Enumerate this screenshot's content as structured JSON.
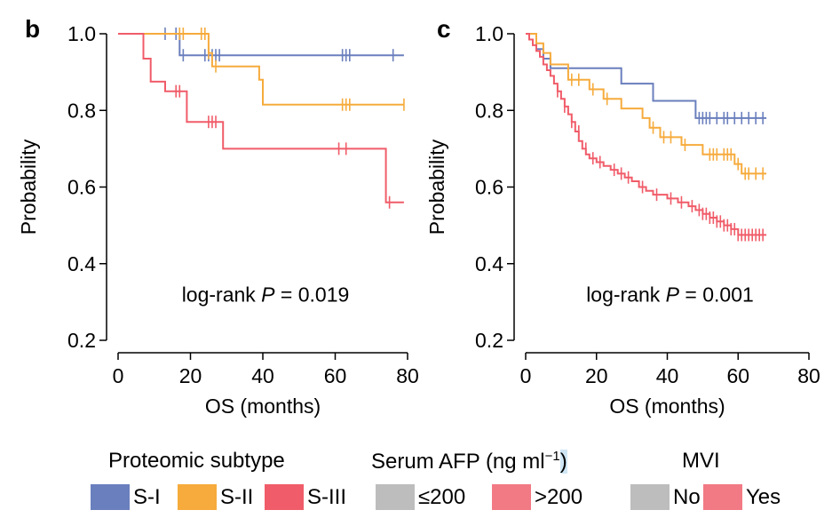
{
  "chart_data": [
    {
      "panel": "b",
      "type": "line",
      "subtype": "kaplan-meier",
      "xlabel": "OS (months)",
      "ylabel": "Probability",
      "xlim": [
        0,
        80
      ],
      "ylim": [
        0.2,
        1.0
      ],
      "xticks": [
        0,
        20,
        40,
        60,
        80
      ],
      "yticks": [
        0.2,
        0.4,
        0.6,
        0.8,
        1.0
      ],
      "ytick_labels": [
        "0.2",
        "0.4",
        "0.6",
        "0.8",
        "1.0"
      ],
      "annotation_prefix": "log-rank ",
      "annotation_p": "P",
      "annotation_suffix": " = 0.019",
      "series": [
        {
          "name": "S-I",
          "color": "#6a7fbd",
          "steps": [
            [
              0,
              1.0
            ],
            [
              17,
              1.0
            ],
            [
              17,
              0.944
            ],
            [
              79,
              0.944
            ]
          ],
          "censor": [
            [
              13,
              1.0
            ],
            [
              16,
              1.0
            ],
            [
              18,
              0.944
            ],
            [
              24,
              0.944
            ],
            [
              25,
              0.944
            ],
            [
              26,
              0.944
            ],
            [
              27,
              0.944
            ],
            [
              28,
              0.944
            ],
            [
              62,
              0.944
            ],
            [
              63,
              0.944
            ],
            [
              64,
              0.944
            ],
            [
              76,
              0.944
            ]
          ]
        },
        {
          "name": "S-II",
          "color": "#f6ab3c",
          "steps": [
            [
              0,
              1.0
            ],
            [
              25,
              1.0
            ],
            [
              25,
              0.95
            ],
            [
              26,
              0.95
            ],
            [
              26,
              0.915
            ],
            [
              39,
              0.915
            ],
            [
              39,
              0.88
            ],
            [
              40,
              0.88
            ],
            [
              40,
              0.815
            ],
            [
              79,
              0.815
            ]
          ],
          "censor": [
            [
              17,
              1.0
            ],
            [
              18,
              1.0
            ],
            [
              23,
              1.0
            ],
            [
              24,
              1.0
            ],
            [
              25,
              0.95
            ],
            [
              27,
              0.915
            ],
            [
              62,
              0.815
            ],
            [
              63,
              0.815
            ],
            [
              64,
              0.815
            ],
            [
              79,
              0.815
            ]
          ]
        },
        {
          "name": "S-III",
          "color": "#f05c69",
          "steps": [
            [
              0,
              1.0
            ],
            [
              7,
              1.0
            ],
            [
              7,
              0.935
            ],
            [
              9,
              0.935
            ],
            [
              9,
              0.875
            ],
            [
              13,
              0.875
            ],
            [
              13,
              0.85
            ],
            [
              19,
              0.85
            ],
            [
              19,
              0.77
            ],
            [
              29,
              0.77
            ],
            [
              29,
              0.7
            ],
            [
              74,
              0.7
            ],
            [
              74,
              0.56
            ],
            [
              79,
              0.56
            ]
          ],
          "censor": [
            [
              16,
              0.85
            ],
            [
              17,
              0.85
            ],
            [
              25,
              0.77
            ],
            [
              26,
              0.77
            ],
            [
              27,
              0.77
            ],
            [
              61,
              0.7
            ],
            [
              63,
              0.7
            ],
            [
              75,
              0.56
            ]
          ]
        }
      ]
    },
    {
      "panel": "c",
      "type": "line",
      "subtype": "kaplan-meier",
      "xlabel": "OS (months)",
      "ylabel": "Probability",
      "xlim": [
        0,
        80
      ],
      "ylim": [
        0.2,
        1.0
      ],
      "xticks": [
        0,
        20,
        40,
        60,
        80
      ],
      "yticks": [
        0.2,
        0.4,
        0.6,
        0.8,
        1.0
      ],
      "ytick_labels": [
        "0.2",
        "0.4",
        "0.6",
        "0.8",
        "1.0"
      ],
      "annotation_prefix": "log-rank ",
      "annotation_p": "P",
      "annotation_suffix": " = 0.001",
      "series": [
        {
          "name": "≤200",
          "color": "#6a7fbd",
          "steps": [
            [
              0,
              1.0
            ],
            [
              3,
              1.0
            ],
            [
              3,
              0.96
            ],
            [
              5,
              0.96
            ],
            [
              5,
              0.935
            ],
            [
              7,
              0.935
            ],
            [
              7,
              0.91
            ],
            [
              27,
              0.91
            ],
            [
              27,
              0.87
            ],
            [
              36,
              0.87
            ],
            [
              36,
              0.825
            ],
            [
              48,
              0.825
            ],
            [
              48,
              0.78
            ],
            [
              68,
              0.78
            ]
          ],
          "censor": [
            [
              49,
              0.78
            ],
            [
              50,
              0.78
            ],
            [
              51,
              0.78
            ],
            [
              52,
              0.78
            ],
            [
              54,
              0.78
            ],
            [
              56,
              0.78
            ],
            [
              57,
              0.78
            ],
            [
              59,
              0.78
            ],
            [
              61,
              0.78
            ],
            [
              63,
              0.78
            ],
            [
              65,
              0.78
            ],
            [
              67,
              0.78
            ]
          ]
        },
        {
          "name": ">200",
          "color": "#f6ab3c",
          "steps": [
            [
              0,
              1.0
            ],
            [
              3,
              1.0
            ],
            [
              3,
              0.975
            ],
            [
              5,
              0.975
            ],
            [
              5,
              0.95
            ],
            [
              7,
              0.95
            ],
            [
              7,
              0.92
            ],
            [
              12,
              0.92
            ],
            [
              12,
              0.88
            ],
            [
              18,
              0.88
            ],
            [
              18,
              0.855
            ],
            [
              22,
              0.855
            ],
            [
              22,
              0.83
            ],
            [
              27,
              0.83
            ],
            [
              27,
              0.805
            ],
            [
              33,
              0.805
            ],
            [
              33,
              0.78
            ],
            [
              35,
              0.78
            ],
            [
              35,
              0.755
            ],
            [
              38,
              0.755
            ],
            [
              38,
              0.73
            ],
            [
              44,
              0.73
            ],
            [
              44,
              0.71
            ],
            [
              50,
              0.71
            ],
            [
              50,
              0.685
            ],
            [
              59,
              0.685
            ],
            [
              59,
              0.66
            ],
            [
              61,
              0.66
            ],
            [
              61,
              0.635
            ],
            [
              68,
              0.635
            ]
          ],
          "censor": [
            [
              13,
              0.88
            ],
            [
              15,
              0.88
            ],
            [
              19,
              0.855
            ],
            [
              23,
              0.83
            ],
            [
              36,
              0.755
            ],
            [
              39,
              0.73
            ],
            [
              41,
              0.73
            ],
            [
              45,
              0.71
            ],
            [
              52,
              0.685
            ],
            [
              53,
              0.685
            ],
            [
              54,
              0.685
            ],
            [
              56,
              0.685
            ],
            [
              57,
              0.685
            ],
            [
              58,
              0.685
            ],
            [
              60,
              0.66
            ],
            [
              62,
              0.635
            ],
            [
              63,
              0.635
            ],
            [
              65,
              0.635
            ],
            [
              67,
              0.635
            ]
          ]
        },
        {
          "name": "Yes",
          "color": "#f05c69",
          "steps": [
            [
              0,
              1.0
            ],
            [
              1,
              1.0
            ],
            [
              1,
              0.985
            ],
            [
              2,
              0.985
            ],
            [
              2,
              0.97
            ],
            [
              3,
              0.97
            ],
            [
              3,
              0.955
            ],
            [
              4,
              0.955
            ],
            [
              4,
              0.94
            ],
            [
              5,
              0.94
            ],
            [
              5,
              0.92
            ],
            [
              6,
              0.92
            ],
            [
              6,
              0.905
            ],
            [
              7,
              0.905
            ],
            [
              7,
              0.89
            ],
            [
              8,
              0.89
            ],
            [
              8,
              0.87
            ],
            [
              9,
              0.87
            ],
            [
              9,
              0.85
            ],
            [
              10,
              0.85
            ],
            [
              10,
              0.83
            ],
            [
              11,
              0.83
            ],
            [
              11,
              0.81
            ],
            [
              12,
              0.81
            ],
            [
              12,
              0.79
            ],
            [
              13,
              0.79
            ],
            [
              13,
              0.77
            ],
            [
              14,
              0.77
            ],
            [
              14,
              0.745
            ],
            [
              15,
              0.745
            ],
            [
              15,
              0.72
            ],
            [
              16,
              0.72
            ],
            [
              16,
              0.7
            ],
            [
              17,
              0.7
            ],
            [
              17,
              0.685
            ],
            [
              18,
              0.685
            ],
            [
              18,
              0.675
            ],
            [
              20,
              0.675
            ],
            [
              20,
              0.665
            ],
            [
              22,
              0.665
            ],
            [
              22,
              0.655
            ],
            [
              24,
              0.655
            ],
            [
              24,
              0.645
            ],
            [
              26,
              0.645
            ],
            [
              26,
              0.635
            ],
            [
              28,
              0.635
            ],
            [
              28,
              0.625
            ],
            [
              30,
              0.625
            ],
            [
              30,
              0.615
            ],
            [
              32,
              0.615
            ],
            [
              32,
              0.6
            ],
            [
              34,
              0.6
            ],
            [
              34,
              0.59
            ],
            [
              36,
              0.59
            ],
            [
              36,
              0.58
            ],
            [
              40,
              0.58
            ],
            [
              40,
              0.57
            ],
            [
              43,
              0.57
            ],
            [
              43,
              0.56
            ],
            [
              46,
              0.56
            ],
            [
              46,
              0.55
            ],
            [
              48,
              0.55
            ],
            [
              48,
              0.54
            ],
            [
              50,
              0.54
            ],
            [
              50,
              0.53
            ],
            [
              52,
              0.53
            ],
            [
              52,
              0.52
            ],
            [
              54,
              0.52
            ],
            [
              54,
              0.51
            ],
            [
              56,
              0.51
            ],
            [
              56,
              0.5
            ],
            [
              58,
              0.5
            ],
            [
              58,
              0.49
            ],
            [
              60,
              0.49
            ],
            [
              60,
              0.475
            ],
            [
              68,
              0.475
            ]
          ],
          "censor": [
            [
              9,
              0.85
            ],
            [
              11,
              0.81
            ],
            [
              13,
              0.77
            ],
            [
              15,
              0.745
            ],
            [
              17,
              0.7
            ],
            [
              19,
              0.675
            ],
            [
              21,
              0.665
            ],
            [
              25,
              0.645
            ],
            [
              27,
              0.635
            ],
            [
              29,
              0.625
            ],
            [
              33,
              0.6
            ],
            [
              37,
              0.58
            ],
            [
              41,
              0.57
            ],
            [
              44,
              0.56
            ],
            [
              47,
              0.55
            ],
            [
              49,
              0.54
            ],
            [
              50,
              0.53
            ],
            [
              51,
              0.53
            ],
            [
              52,
              0.52
            ],
            [
              53,
              0.52
            ],
            [
              54,
              0.51
            ],
            [
              55,
              0.51
            ],
            [
              56,
              0.5
            ],
            [
              57,
              0.5
            ],
            [
              58,
              0.49
            ],
            [
              59,
              0.49
            ],
            [
              60,
              0.475
            ],
            [
              61,
              0.475
            ],
            [
              62,
              0.475
            ],
            [
              63,
              0.475
            ],
            [
              64,
              0.475
            ],
            [
              65,
              0.475
            ],
            [
              66,
              0.475
            ],
            [
              67,
              0.475
            ]
          ]
        }
      ]
    }
  ],
  "panel_labels": {
    "b": "b",
    "c": "c"
  },
  "legend": {
    "groups": [
      {
        "title": "Proteomic subtype",
        "items": [
          {
            "label": "S-I",
            "color": "#6a7fbd"
          },
          {
            "label": "S-II",
            "color": "#f6ab3c"
          },
          {
            "label": "S-III",
            "color": "#f05c69"
          }
        ]
      },
      {
        "title_prefix": "Serum AFP (ng ml",
        "title_sup": "−1",
        "title_paren": ")",
        "items": [
          {
            "label": "≤200",
            "color": "#bdbdbd"
          },
          {
            "label": ">200",
            "color": "#f27a84"
          }
        ]
      },
      {
        "title": "MVI",
        "items": [
          {
            "label": "No",
            "color": "#bdbdbd"
          },
          {
            "label": "Yes",
            "color": "#f27a84"
          }
        ]
      }
    ]
  }
}
